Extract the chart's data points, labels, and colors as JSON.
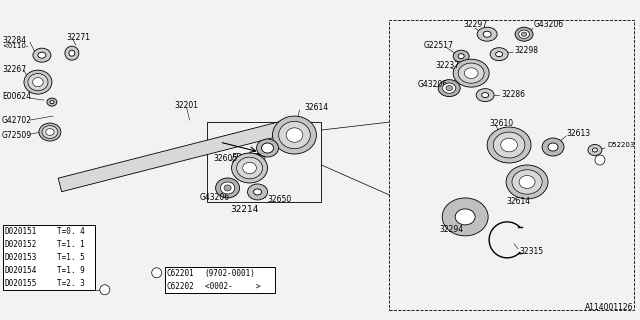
{
  "bg_color": "#F0F0F0",
  "line_color": "#000000",
  "text_color": "#000000",
  "diagram_id": "A114001126",
  "table1_rows": [
    [
      "D020151",
      "T=0. 4"
    ],
    [
      "D020152",
      "T=1. 1"
    ],
    [
      "D020153",
      "T=1. 5"
    ],
    [
      "D020154",
      "T=1. 9"
    ],
    [
      "D020155",
      "T=2. 3"
    ]
  ],
  "table2_rows": [
    [
      "C62201",
      "(9702-0001)"
    ],
    [
      "C62202",
      "<0002-     >"
    ]
  ]
}
